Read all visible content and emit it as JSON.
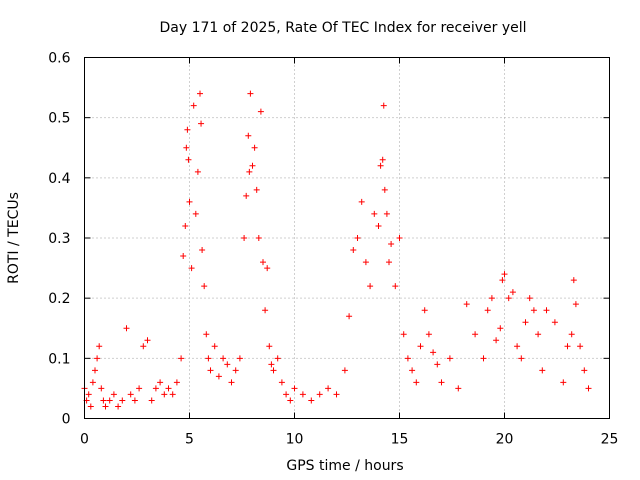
{
  "chart_data": {
    "type": "scatter",
    "title": "Day 171 of 2025, Rate Of TEC Index for receiver yell",
    "xlabel": "GPS time / hours",
    "ylabel": "ROTI / TECUs",
    "xlim": [
      0,
      25
    ],
    "ylim": [
      0,
      0.6
    ],
    "xticks": [
      "0",
      "5",
      "10",
      "15",
      "20",
      "25"
    ],
    "yticks": [
      "0",
      "0.1",
      "0.2",
      "0.3",
      "0.4",
      "0.5",
      "0.6"
    ],
    "grid": true,
    "marker": "+",
    "series_color": "#ff0000",
    "series": [
      {
        "name": "ROTI",
        "x": [
          0.0,
          0.1,
          0.2,
          0.3,
          0.4,
          0.5,
          0.6,
          0.7,
          0.8,
          0.9,
          1.0,
          1.2,
          1.4,
          1.6,
          1.8,
          2.0,
          2.2,
          2.4,
          2.6,
          2.8,
          3.0,
          3.2,
          3.4,
          3.6,
          3.8,
          4.0,
          4.2,
          4.4,
          4.6,
          4.7,
          4.8,
          4.85,
          4.9,
          4.95,
          5.0,
          5.1,
          5.2,
          5.3,
          5.4,
          5.5,
          5.55,
          5.6,
          5.7,
          5.8,
          5.9,
          6.0,
          6.2,
          6.4,
          6.6,
          6.8,
          7.0,
          7.2,
          7.4,
          7.6,
          7.7,
          7.8,
          7.85,
          7.9,
          8.0,
          8.1,
          8.2,
          8.3,
          8.4,
          8.5,
          8.6,
          8.7,
          8.8,
          8.9,
          9.0,
          9.2,
          9.4,
          9.6,
          9.8,
          10.0,
          10.4,
          10.8,
          11.2,
          11.6,
          12.0,
          12.4,
          12.6,
          12.8,
          13.0,
          13.2,
          13.4,
          13.6,
          13.8,
          14.0,
          14.1,
          14.2,
          14.25,
          14.3,
          14.4,
          14.5,
          14.6,
          14.8,
          15.0,
          15.2,
          15.4,
          15.6,
          15.8,
          16.0,
          16.2,
          16.4,
          16.6,
          16.8,
          17.0,
          17.4,
          17.8,
          18.2,
          18.6,
          19.0,
          19.2,
          19.4,
          19.6,
          19.8,
          19.9,
          20.0,
          20.2,
          20.4,
          20.6,
          20.8,
          21.0,
          21.2,
          21.4,
          21.6,
          21.8,
          22.0,
          22.4,
          22.8,
          23.0,
          23.2,
          23.3,
          23.4,
          23.6,
          23.8,
          24.0
        ],
        "y": [
          0.05,
          0.03,
          0.04,
          0.02,
          0.06,
          0.08,
          0.1,
          0.12,
          0.05,
          0.03,
          0.02,
          0.03,
          0.04,
          0.02,
          0.03,
          0.15,
          0.04,
          0.03,
          0.05,
          0.12,
          0.13,
          0.03,
          0.05,
          0.06,
          0.04,
          0.05,
          0.04,
          0.06,
          0.1,
          0.27,
          0.32,
          0.45,
          0.48,
          0.43,
          0.36,
          0.25,
          0.52,
          0.34,
          0.41,
          0.54,
          0.49,
          0.28,
          0.22,
          0.14,
          0.1,
          0.08,
          0.12,
          0.07,
          0.1,
          0.09,
          0.06,
          0.08,
          0.1,
          0.3,
          0.37,
          0.47,
          0.41,
          0.54,
          0.42,
          0.45,
          0.38,
          0.3,
          0.51,
          0.26,
          0.18,
          0.25,
          0.12,
          0.09,
          0.08,
          0.1,
          0.06,
          0.04,
          0.03,
          0.05,
          0.04,
          0.03,
          0.04,
          0.05,
          0.04,
          0.08,
          0.17,
          0.28,
          0.3,
          0.36,
          0.26,
          0.22,
          0.34,
          0.32,
          0.42,
          0.43,
          0.52,
          0.38,
          0.34,
          0.26,
          0.29,
          0.22,
          0.3,
          0.14,
          0.1,
          0.08,
          0.06,
          0.12,
          0.18,
          0.14,
          0.11,
          0.09,
          0.06,
          0.1,
          0.05,
          0.19,
          0.14,
          0.1,
          0.18,
          0.2,
          0.13,
          0.15,
          0.23,
          0.24,
          0.2,
          0.21,
          0.12,
          0.1,
          0.16,
          0.2,
          0.18,
          0.14,
          0.08,
          0.18,
          0.16,
          0.06,
          0.12,
          0.14,
          0.23,
          0.19,
          0.12,
          0.08,
          0.05
        ]
      }
    ]
  }
}
